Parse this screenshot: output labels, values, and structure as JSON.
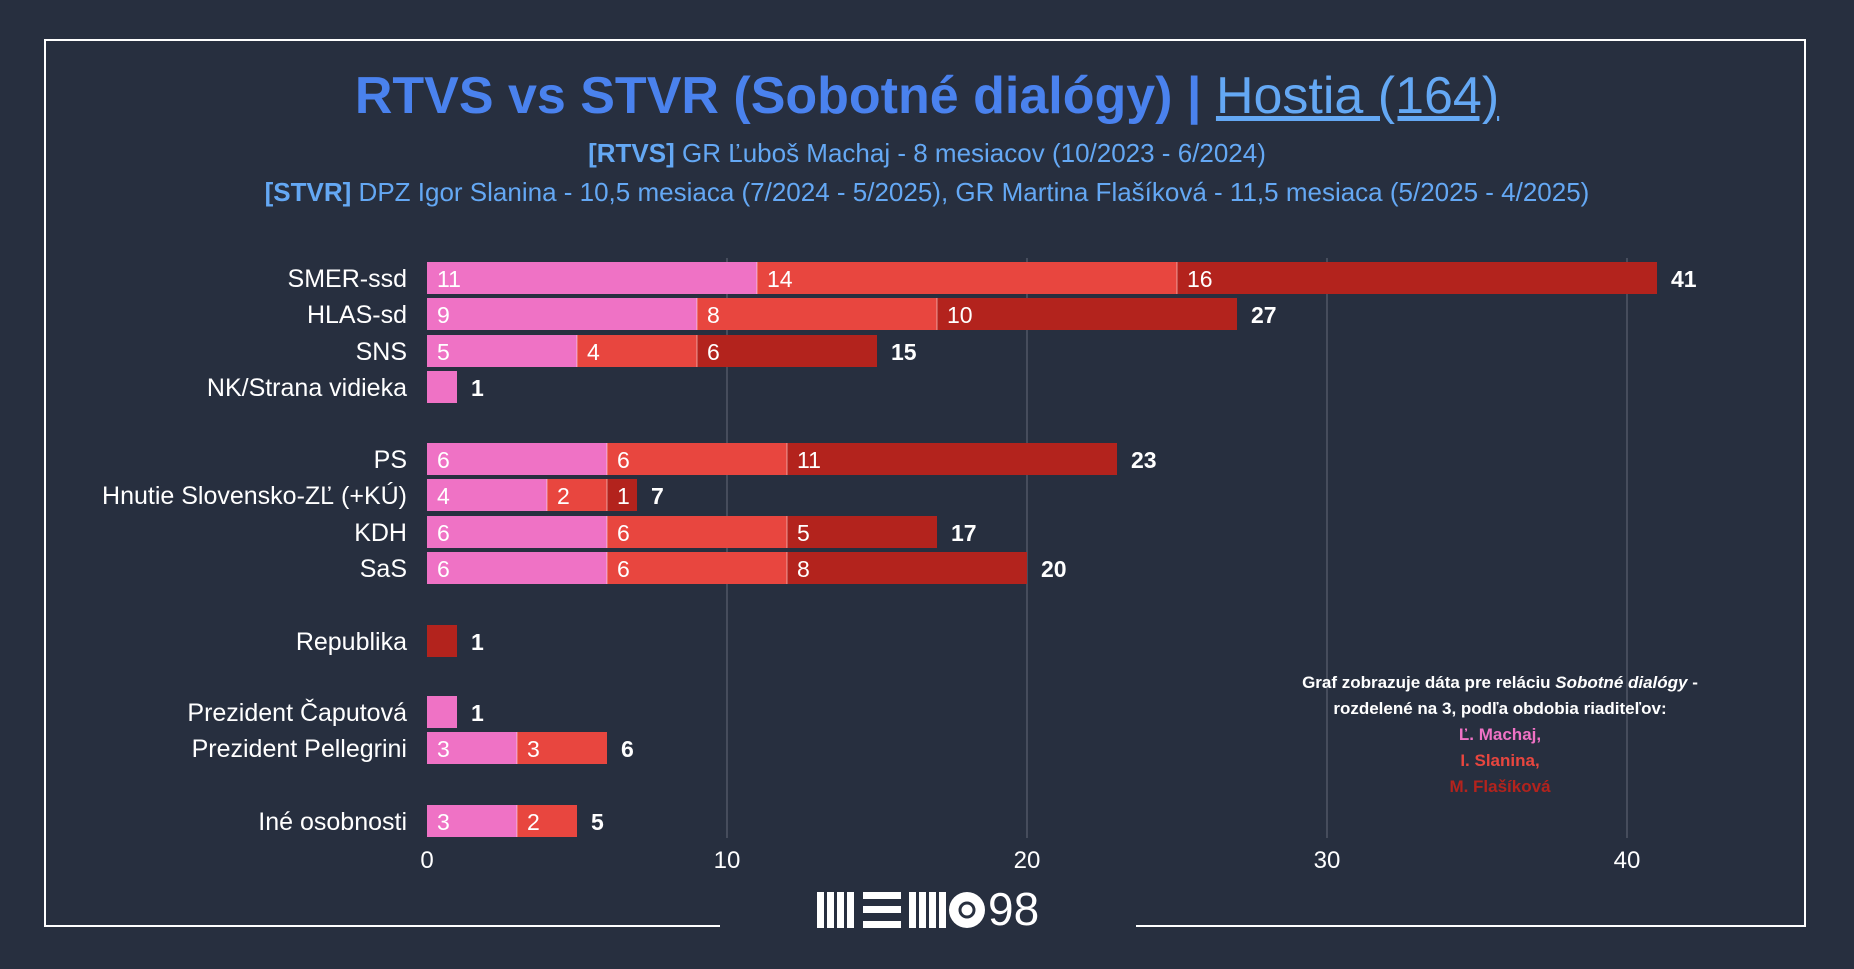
{
  "header": {
    "title_main": "RTVS vs STVR (Sobotné dialógy)",
    "title_sep": "|",
    "title_link": "Hostia (164)",
    "subtitle1_tag": "[RTVS]",
    "subtitle1_text": "GR Ľuboš Machaj - 8 mesiacov (10/2023 - 6/2024)",
    "subtitle2_tag": "[STVR]",
    "subtitle2_text": "DPZ Igor Slanina - 10,5 mesiaca (7/2024 - 5/2025), GR Martina Flašíková - 11,5 mesiaca (5/2025 - 4/2025)"
  },
  "note": {
    "line1_a": "Graf zobrazuje dáta pre reláciu",
    "line1_em": "Sobotné dialógy",
    "line1_b": "-",
    "line2": "rozdelené na 3, podľa obdobia riaditeľov:",
    "p1": "Ľ. Machaj,",
    "p2": "I. Slanina,",
    "p3": "M. Flašíková"
  },
  "logo": {
    "text": "98"
  },
  "colors": {
    "background": "#272f3f",
    "machaj": "#ef72c5",
    "slanina": "#e8463f",
    "flasikova": "#b3231d",
    "title": "#4a82ee",
    "subtitle": "#64a8f4",
    "grid": "#5a6170"
  },
  "chart_data": {
    "type": "bar",
    "orientation": "horizontal",
    "stacked": true,
    "categories": [
      "SMER-ssd",
      "HLAS-sd",
      "SNS",
      "NK/Strana vidieka",
      "PS",
      "Hnutie Slovensko-ZĽ (+KÚ)",
      "KDH",
      "SaS",
      "Republika",
      "Prezident Čaputová",
      "Prezident Pellegrini",
      "Iné osobnosti"
    ],
    "series": [
      {
        "name": "Ľ. Machaj",
        "values": [
          11,
          9,
          5,
          1,
          6,
          4,
          6,
          6,
          0,
          1,
          3,
          3
        ]
      },
      {
        "name": "I. Slanina",
        "values": [
          14,
          8,
          4,
          0,
          6,
          2,
          6,
          6,
          0,
          0,
          3,
          2
        ]
      },
      {
        "name": "M. Flašíková",
        "values": [
          16,
          10,
          6,
          0,
          11,
          1,
          5,
          8,
          1,
          0,
          0,
          0
        ]
      }
    ],
    "totals": [
      41,
      27,
      15,
      1,
      23,
      7,
      17,
      20,
      1,
      1,
      6,
      5
    ],
    "xticks": [
      0,
      10,
      20,
      30,
      40
    ],
    "xlim": [
      0,
      45
    ],
    "grid": true
  }
}
